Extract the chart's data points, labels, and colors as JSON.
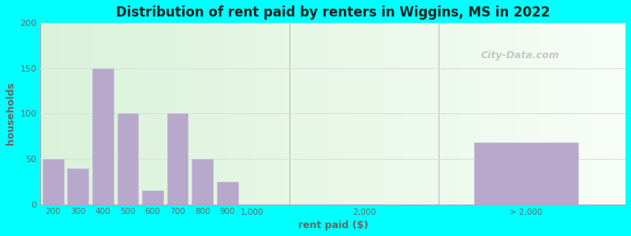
{
  "title": "Distribution of rent paid by renters in Wiggins, MS in 2022",
  "xlabel": "rent paid ($)",
  "ylabel": "households",
  "background_color": "#00FFFF",
  "bar_color": "#b8a8cc",
  "bar_edge_color": "#c8bedd",
  "yticks": [
    0,
    50,
    100,
    150,
    200
  ],
  "ylim": [
    0,
    200
  ],
  "bar_labels": [
    "200",
    "300",
    "400",
    "500",
    "600",
    "700",
    "800",
    "900",
    "1,000",
    "2,000",
    "> 2,000"
  ],
  "bar_values": [
    50,
    40,
    150,
    100,
    15,
    100,
    50,
    25,
    0,
    0,
    68
  ],
  "watermark": "City-Data.com",
  "grid_color": "#dddddd",
  "tick_color": "#666666",
  "title_color": "#222222"
}
